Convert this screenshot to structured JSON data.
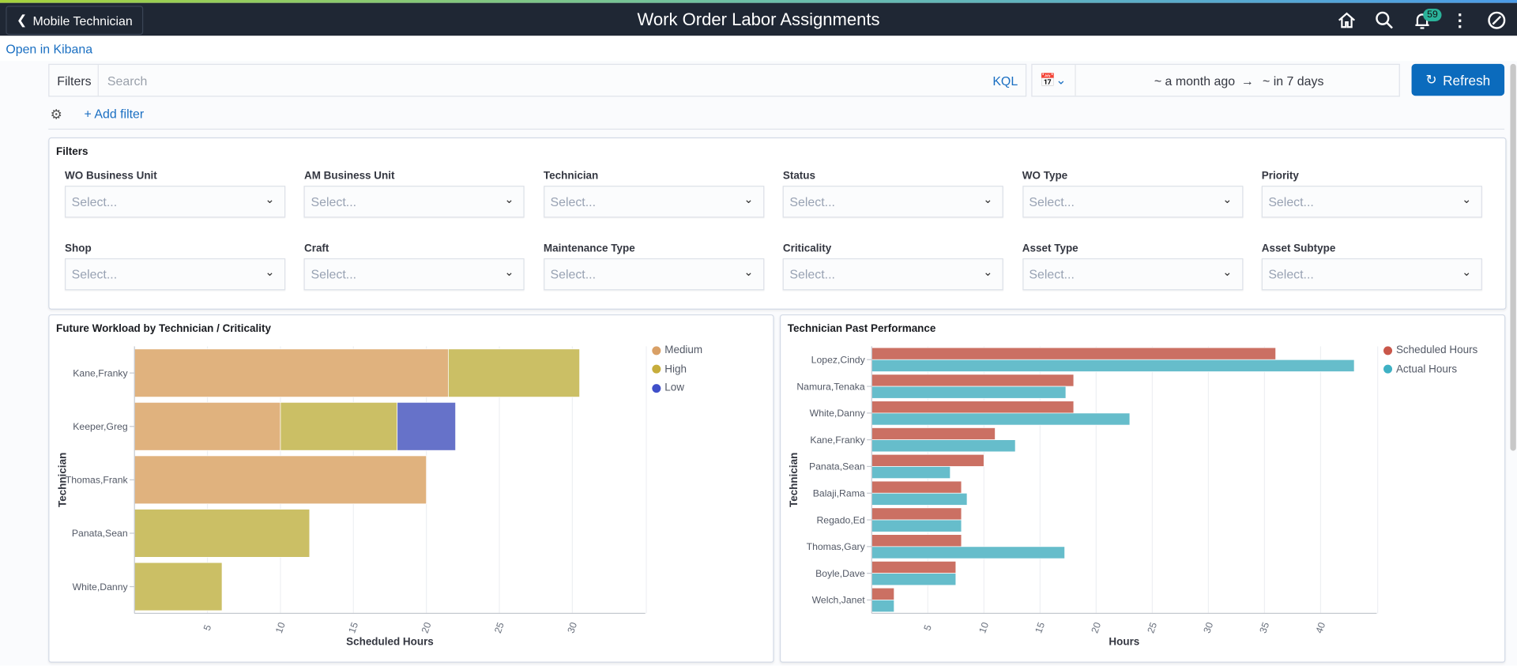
{
  "header": {
    "back_label": "Mobile Technician",
    "title": "Work Order Labor Assignments",
    "notification_count": "59"
  },
  "link_kibana": "Open in Kibana",
  "query": {
    "filters_label": "Filters",
    "search_placeholder": "Search",
    "kql_label": "KQL",
    "date_from": "~ a month ago",
    "arrow": "→",
    "date_to": "~ in 7 days",
    "refresh_label": "Refresh",
    "add_filter_label": "+ Add filter"
  },
  "filter_panel": {
    "title": "Filters",
    "placeholder": "Select...",
    "fields": [
      "WO Business Unit",
      "AM Business Unit",
      "Technician",
      "Status",
      "WO Type",
      "Priority",
      "Shop",
      "Craft",
      "Maintenance Type",
      "Criticality",
      "Asset Type",
      "Asset Subtype"
    ]
  },
  "chart_data": [
    {
      "type": "bar",
      "orientation": "horizontal",
      "stacked": true,
      "title": "Future Workload by Technician / Criticality",
      "xlabel": "Scheduled Hours",
      "ylabel": "Technician",
      "xlim": [
        0,
        35
      ],
      "xticks": [
        5,
        10,
        15,
        20,
        25,
        30
      ],
      "grid": true,
      "legend": "right",
      "categories": [
        "Kane,Franky",
        "Keeper,Greg",
        "Thomas,Frank",
        "Panata,Sean",
        "White,Danny"
      ],
      "series": [
        {
          "name": "Medium",
          "color": "#e0b27e",
          "values": [
            21.5,
            10,
            20,
            0,
            0
          ]
        },
        {
          "name": "High",
          "color": "#cbbf65",
          "values": [
            9,
            8,
            0,
            12,
            6
          ]
        },
        {
          "name": "Low",
          "color": "#6672c9",
          "values": [
            0,
            4,
            0,
            0,
            0
          ]
        }
      ],
      "legend_colors": [
        "#d9a066",
        "#c7ad3c",
        "#3f4fc9"
      ]
    },
    {
      "type": "bar",
      "orientation": "horizontal",
      "stacked": false,
      "title": "Technician Past Performance",
      "xlabel": "Hours",
      "ylabel": "Technician",
      "xlim": [
        0,
        45
      ],
      "xticks": [
        5,
        10,
        15,
        20,
        25,
        30,
        35,
        40
      ],
      "grid": true,
      "legend": "right",
      "categories": [
        "Lopez,Cindy",
        "Namura,Tenaka",
        "White,Danny",
        "Kane,Franky",
        "Panata,Sean",
        "Balaji,Rama",
        "Regado,Ed",
        "Thomas,Gary",
        "Boyle,Dave",
        "Welch,Janet"
      ],
      "series": [
        {
          "name": "Scheduled Hours",
          "color": "#cb7063",
          "values": [
            36,
            18,
            18,
            11,
            10,
            8,
            8,
            8,
            7.5,
            2
          ]
        },
        {
          "name": "Actual Hours",
          "color": "#66bdcb",
          "values": [
            43,
            17.3,
            23,
            12.8,
            7,
            8.5,
            8,
            17.2,
            7.5,
            2
          ]
        }
      ],
      "legend_colors": [
        "#c9574a",
        "#3fb1c4"
      ]
    }
  ]
}
